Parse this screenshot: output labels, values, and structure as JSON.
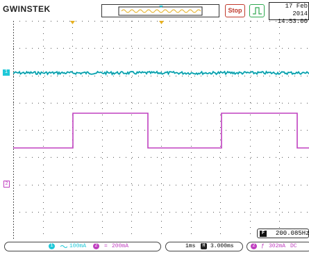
{
  "brand": {
    "logo": "GWINSTEK"
  },
  "status": {
    "run_label": "Stop"
  },
  "datetime": {
    "date": "17 Feb 2014",
    "time": "14:53:00"
  },
  "channels": {
    "ch1": {
      "marker": "1",
      "number": "1",
      "coupling_icon": "ac-wave-icon",
      "scale": "100mA",
      "color": "#1ec8d8"
    },
    "ch2": {
      "marker": "2",
      "number": "2",
      "coupling_icon": "dc-equals-icon",
      "scale": "200mA",
      "color": "#c040c0"
    }
  },
  "timebase": {
    "scale": "1ms",
    "position_icon": "H",
    "position": "3.000ms"
  },
  "trigger": {
    "source": "2",
    "slope_symbol": "ƒ",
    "level": "302mA",
    "coupling": "DC",
    "color": "#2ea84f"
  },
  "frequency": {
    "badge": "F",
    "value": "200.085Hz"
  },
  "colors": {
    "grid": "#444444",
    "ch1": "#1ec8d8",
    "ch2": "#c040c0",
    "trigger_marker": "#e6b020"
  }
}
